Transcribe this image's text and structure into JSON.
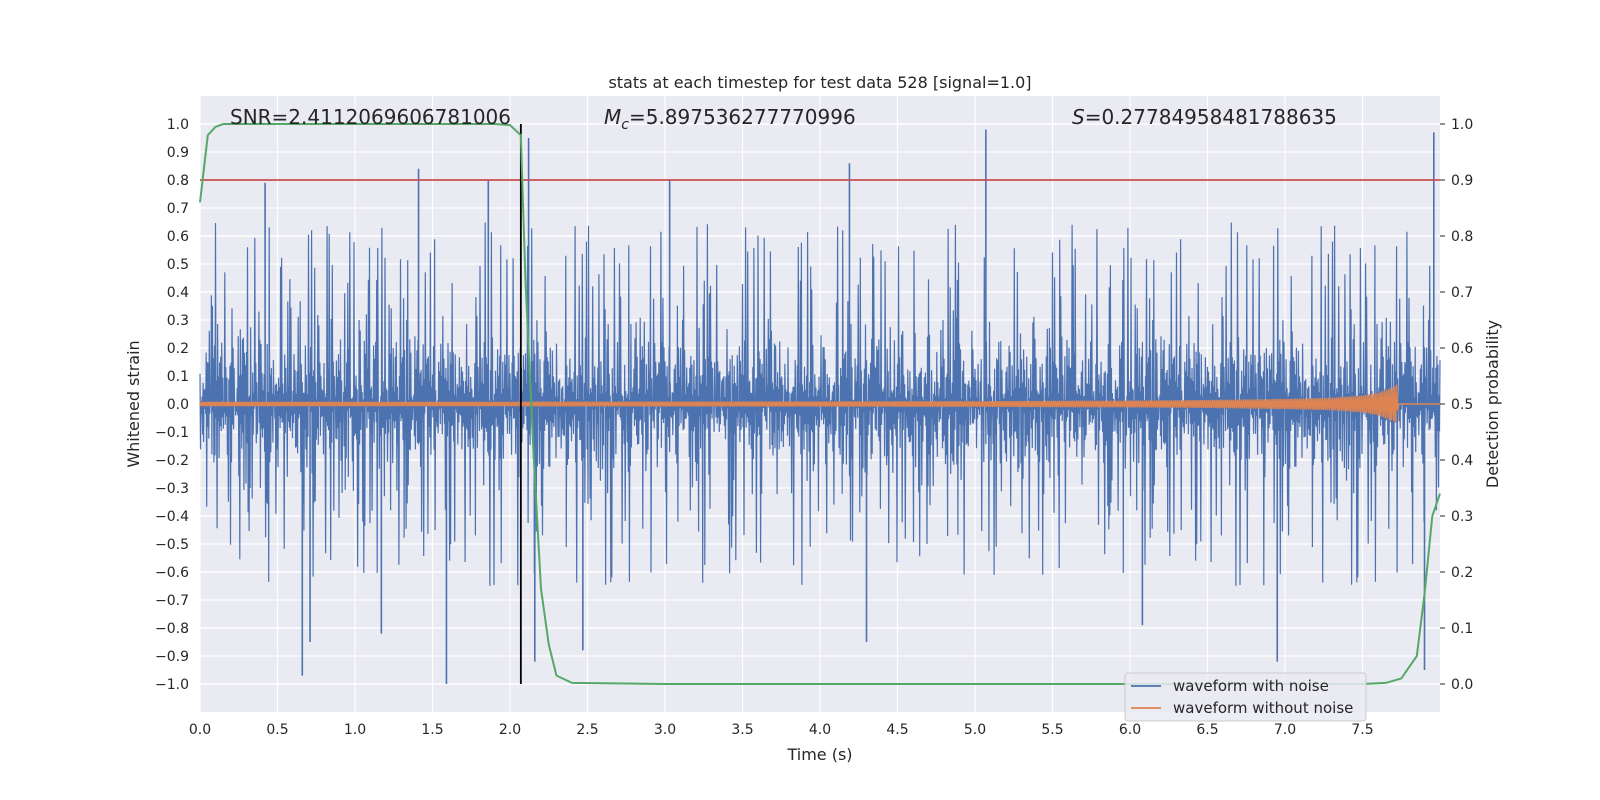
{
  "chart_data": {
    "type": "line",
    "title": "stats at each timestep for test data 528 [signal=1.0]",
    "xlabel": "Time (s)",
    "ylabel_left": "Whitened strain",
    "ylabel_right": "Detection probability",
    "xlim": [
      0.0,
      8.0
    ],
    "ylim_left": [
      -1.1,
      1.1
    ],
    "ylim_right": [
      -0.05,
      1.05
    ],
    "xticks": [
      0.0,
      0.5,
      1.0,
      1.5,
      2.0,
      2.5,
      3.0,
      3.5,
      4.0,
      4.5,
      5.0,
      5.5,
      6.0,
      6.5,
      7.0,
      7.5
    ],
    "yticks_left": [
      -1.0,
      -0.9,
      -0.8,
      -0.7,
      -0.6,
      -0.5,
      -0.4,
      -0.3,
      -0.2,
      -0.1,
      0.0,
      0.1,
      0.2,
      0.3,
      0.4,
      0.5,
      0.6,
      0.7,
      0.8,
      0.9,
      1.0
    ],
    "yticks_right": [
      0.0,
      0.1,
      0.2,
      0.3,
      0.4,
      0.5,
      0.6,
      0.7,
      0.8,
      0.9,
      1.0
    ],
    "annotations": {
      "snr_label": "SNR=2.4112069606781006",
      "mc_symbol": "M",
      "mc_subscript": "c",
      "mc_value": "=5.897536277770996",
      "s_symbol": "S",
      "s_value": "=0.27784958481788635"
    },
    "legend": {
      "location": "lower right",
      "entries": [
        "waveform with noise",
        "waveform without noise"
      ]
    },
    "threshold_line": {
      "axis": "right",
      "y": 0.9,
      "color": "#c44e52"
    },
    "vertical_marker": {
      "x": 2.07,
      "color": "#000000"
    },
    "series": [
      {
        "name": "waveform with noise",
        "axis": "left",
        "color": "#4c72b0",
        "description": "whitened noisy strain, dense noise between about -1.0 and 1.0",
        "typical_amplitude": 0.4,
        "spike_peaks": [
          {
            "x": 0.42,
            "y": 0.79
          },
          {
            "x": 1.41,
            "y": 0.84
          },
          {
            "x": 1.86,
            "y": 0.8
          },
          {
            "x": 2.12,
            "y": 0.95
          },
          {
            "x": 3.03,
            "y": 0.8
          },
          {
            "x": 4.19,
            "y": 0.86
          },
          {
            "x": 5.07,
            "y": 0.98
          },
          {
            "x": 7.96,
            "y": 0.97
          },
          {
            "x": 0.66,
            "y": -0.97
          },
          {
            "x": 0.71,
            "y": -0.85
          },
          {
            "x": 1.59,
            "y": -1.0
          },
          {
            "x": 1.17,
            "y": -0.82
          },
          {
            "x": 2.16,
            "y": -0.92
          },
          {
            "x": 2.47,
            "y": -0.88
          },
          {
            "x": 4.3,
            "y": -0.85
          },
          {
            "x": 6.08,
            "y": -0.79
          },
          {
            "x": 6.95,
            "y": -0.92
          },
          {
            "x": 7.9,
            "y": -0.95
          }
        ]
      },
      {
        "name": "waveform without noise",
        "axis": "left",
        "color": "#dd8452",
        "description": "clean chirp; small oscillation growing toward merger",
        "x": [
          0.0,
          2.0,
          4.0,
          5.0,
          6.0,
          6.5,
          7.0,
          7.3,
          7.5,
          7.6,
          7.65,
          7.7,
          7.72,
          7.73,
          8.0
        ],
        "envelope": [
          0.008,
          0.008,
          0.009,
          0.01,
          0.012,
          0.014,
          0.018,
          0.022,
          0.03,
          0.04,
          0.05,
          0.06,
          0.07,
          0.0,
          0.0
        ]
      },
      {
        "name": "detection probability",
        "axis": "right",
        "color": "#55a868",
        "x": [
          0.0,
          0.05,
          0.1,
          0.15,
          0.3,
          0.5,
          1.0,
          1.5,
          1.9,
          2.0,
          2.07,
          2.1,
          2.15,
          2.2,
          2.25,
          2.3,
          2.4,
          3.0,
          5.0,
          7.0,
          7.5,
          7.65,
          7.75,
          7.85,
          7.9,
          7.95,
          8.0
        ],
        "y": [
          0.86,
          0.98,
          0.995,
          1.0,
          1.0,
          1.0,
          1.0,
          1.0,
          1.0,
          0.998,
          0.98,
          0.72,
          0.42,
          0.17,
          0.07,
          0.015,
          0.002,
          0.0,
          0.0,
          0.0,
          0.0,
          0.002,
          0.01,
          0.05,
          0.16,
          0.3,
          0.34
        ]
      }
    ]
  }
}
